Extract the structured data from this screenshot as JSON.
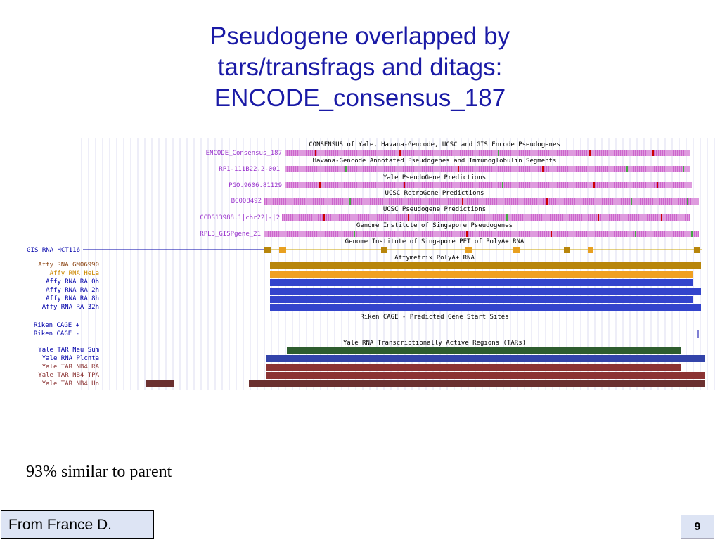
{
  "slide": {
    "title_lines": [
      "Pseudogene overlapped by",
      "tars/transfrags and ditags:",
      "ENCODE_consensus_187"
    ],
    "caption": "93% similar to parent",
    "credit": "From France D.",
    "page_number": "9"
  },
  "browser": {
    "track_titles": {
      "consensus": "CONSENSUS of Yale, Havana-Gencode, UCSC and GIS Encode Pseudogenes",
      "havana": "Havana-Gencode Annotated Pseudogenes and Immunoglobulin Segments",
      "yale_pseudo": "Yale PseudoGene Predictions",
      "retrogene": "UCSC RetroGene Predictions",
      "ucsc_pseudo": "UCSC Pseudogene Predictions",
      "gis_pseudo": "Genome Institute of Singapore Pseudogenes",
      "gis_pet": "Genome Institute of Singapore PET of PolyA+ RNA",
      "affy": "Affymetrix PolyA+ RNA",
      "riken": "Riken CAGE - Predicted Gene Start Sites",
      "yale_tar": "Yale RNA Transcriptionally Active Regions (TARs)"
    },
    "labels": {
      "encode_consensus": "ENCODE_Consensus_187",
      "rp1": "RP1-111B22.2-001",
      "pgo": "PGO.9606.81129",
      "bc": "BC008492",
      "ccds": "CCDS13988.1|chr22|-|2",
      "rpl3": "RPL3_GISPgene_21",
      "gis_hct116": "GIS RNA HCT116",
      "affy_gm06990": "Affy RNA GM06990",
      "affy_hela": "Affy RNA HeLa",
      "affy_ra0h": "Affy RNA RA 0h",
      "affy_ra2h": "Affy RNA RA 2h",
      "affy_ra8h": "Affy RNA RA 8h",
      "affy_ra32h": "Affy RNA RA 32h",
      "riken_plus": "Riken CAGE +",
      "riken_minus": "Riken CAGE -",
      "yale_tar_neu": "Yale TAR Neu Sum",
      "yale_rna_plcnta": "Yale RNA Plcnta",
      "yale_tar_nb4ra": "Yale TAR NB4 RA",
      "yale_tar_nb4tpa": "Yale TAR NB4 TPA",
      "yale_tar_nb4un": "Yale TAR NB4 Un"
    },
    "colors": {
      "pseudogene_fill": "#cc66cc",
      "pseudogene_mark_red": "#cc0000",
      "pseudogene_mark_green": "#44aa44",
      "gis_pet_line": "#c8a000",
      "gis_pet_box": "#e8a020",
      "affy_gm06990": "#b8860b",
      "affy_hela": "#f0a020",
      "affy_ra": "#3344cc",
      "yale_tar_neu": "#2e5d2e",
      "yale_rna_plcnta": "#3344aa",
      "yale_tar_red": "#8b3333",
      "label_purple": "#9933cc",
      "label_blue": "#0000aa",
      "label_orange": "#cc8800",
      "label_brown": "#8b4513"
    }
  }
}
